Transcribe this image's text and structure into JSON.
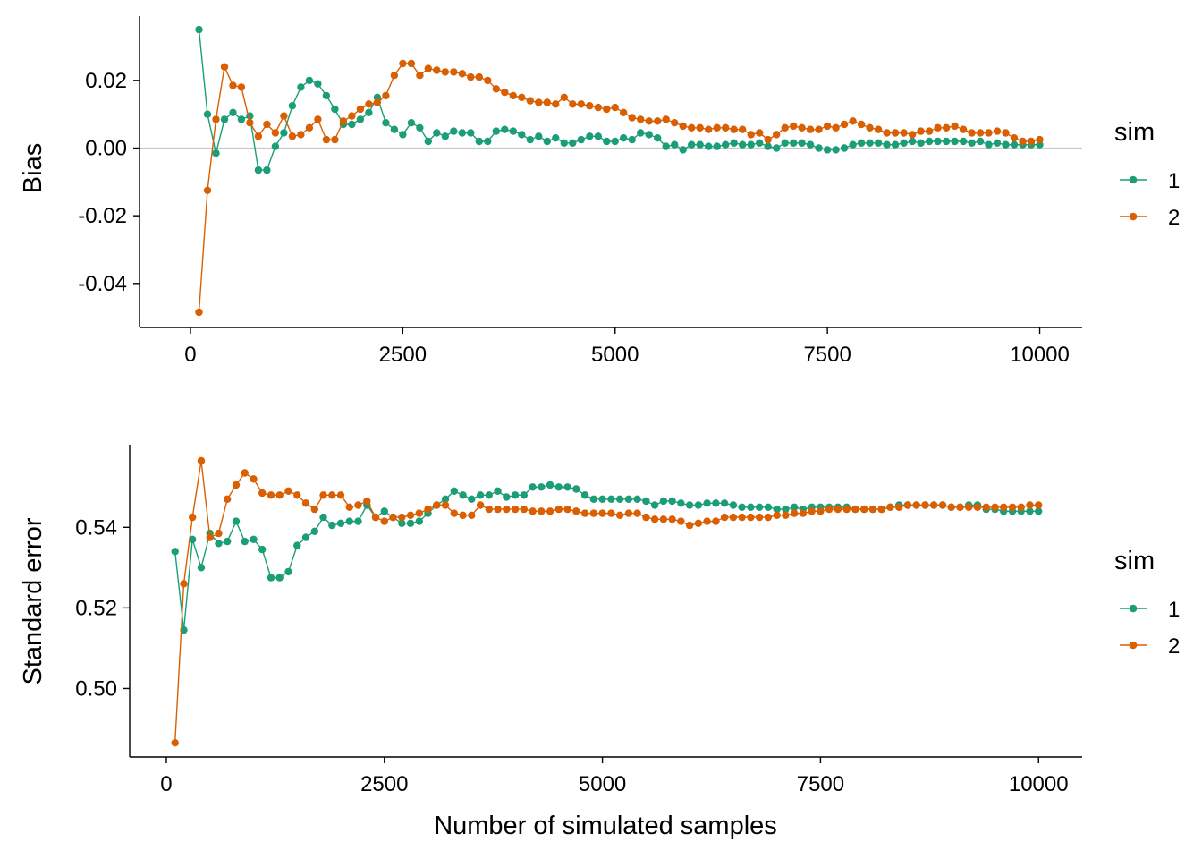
{
  "colors": {
    "series_1": "#1b9e77",
    "series_2": "#d95f02",
    "zero_line": "#c8c8c8",
    "axis": "#000000"
  },
  "chart_data": [
    {
      "type": "line",
      "title": "",
      "xlabel": "",
      "ylabel": "Bias",
      "xlim": [
        -600,
        10500
      ],
      "ylim": [
        -0.053,
        0.039
      ],
      "x_ticks": [
        0,
        2500,
        5000,
        7500,
        10000
      ],
      "x_tick_labels": [
        "0",
        "2500",
        "5000",
        "7500",
        "10000"
      ],
      "y_ticks": [
        -0.04,
        -0.02,
        0.0,
        0.02
      ],
      "y_tick_labels": [
        "-0.04",
        "-0.02",
        "0.00",
        "0.02"
      ],
      "reference_line_y": 0,
      "grid": false,
      "legend": {
        "title": "sim",
        "position": "right",
        "entries": [
          "1",
          "2"
        ]
      },
      "x": [
        100,
        200,
        300,
        400,
        500,
        600,
        700,
        800,
        900,
        1000,
        1100,
        1200,
        1300,
        1400,
        1500,
        1600,
        1700,
        1800,
        1900,
        2000,
        2100,
        2200,
        2300,
        2400,
        2500,
        2600,
        2700,
        2800,
        2900,
        3000,
        3100,
        3200,
        3300,
        3400,
        3500,
        3600,
        3700,
        3800,
        3900,
        4000,
        4100,
        4200,
        4300,
        4400,
        4500,
        4600,
        4700,
        4800,
        4900,
        5000,
        5100,
        5200,
        5300,
        5400,
        5500,
        5600,
        5700,
        5800,
        5900,
        6000,
        6100,
        6200,
        6300,
        6400,
        6500,
        6600,
        6700,
        6800,
        6900,
        7000,
        7100,
        7200,
        7300,
        7400,
        7500,
        7600,
        7700,
        7800,
        7900,
        8000,
        8100,
        8200,
        8300,
        8400,
        8500,
        8600,
        8700,
        8800,
        8900,
        9000,
        9100,
        9200,
        9300,
        9400,
        9500,
        9600,
        9700,
        9800,
        9900,
        10000
      ],
      "series": [
        {
          "name": "1",
          "values": [
            0.035,
            0.01,
            -0.0015,
            0.0085,
            0.0105,
            0.0085,
            0.0095,
            -0.0065,
            -0.0065,
            0.0005,
            0.0045,
            0.0125,
            0.018,
            0.02,
            0.019,
            0.0155,
            0.0115,
            0.007,
            0.007,
            0.0085,
            0.0105,
            0.015,
            0.0075,
            0.0055,
            0.004,
            0.0075,
            0.006,
            0.002,
            0.0045,
            0.0035,
            0.005,
            0.0045,
            0.0045,
            0.002,
            0.002,
            0.005,
            0.0055,
            0.005,
            0.004,
            0.0025,
            0.0035,
            0.002,
            0.003,
            0.0015,
            0.0015,
            0.0025,
            0.0035,
            0.0035,
            0.002,
            0.002,
            0.003,
            0.0025,
            0.0045,
            0.004,
            0.003,
            0.0005,
            0.001,
            -0.0005,
            0.001,
            0.001,
            0.0005,
            0.0005,
            0.001,
            0.0015,
            0.001,
            0.001,
            0.0015,
            0.0005,
            0.0,
            0.0015,
            0.0015,
            0.0015,
            0.001,
            0.0,
            -0.0005,
            -0.0005,
            0.0,
            0.001,
            0.0015,
            0.0015,
            0.0015,
            0.001,
            0.001,
            0.0015,
            0.002,
            0.0015,
            0.002,
            0.002,
            0.002,
            0.002,
            0.002,
            0.0015,
            0.002,
            0.001,
            0.0015,
            0.001,
            0.001,
            0.001,
            0.001,
            0.001
          ]
        },
        {
          "name": "2",
          "values": [
            -0.0485,
            -0.0125,
            0.0085,
            0.024,
            0.0185,
            0.018,
            0.0075,
            0.0035,
            0.007,
            0.0045,
            0.0095,
            0.0035,
            0.004,
            0.006,
            0.0085,
            0.0025,
            0.0025,
            0.008,
            0.0095,
            0.0115,
            0.013,
            0.0135,
            0.0155,
            0.0215,
            0.025,
            0.025,
            0.0215,
            0.0235,
            0.023,
            0.0225,
            0.0225,
            0.022,
            0.021,
            0.021,
            0.02,
            0.0175,
            0.0165,
            0.0155,
            0.015,
            0.014,
            0.0135,
            0.0135,
            0.013,
            0.015,
            0.013,
            0.013,
            0.0125,
            0.012,
            0.0115,
            0.012,
            0.0105,
            0.009,
            0.0085,
            0.008,
            0.008,
            0.0085,
            0.0075,
            0.0065,
            0.006,
            0.006,
            0.0055,
            0.006,
            0.006,
            0.0055,
            0.0055,
            0.004,
            0.0045,
            0.0025,
            0.004,
            0.006,
            0.0065,
            0.006,
            0.0055,
            0.0055,
            0.0065,
            0.006,
            0.007,
            0.008,
            0.007,
            0.006,
            0.0055,
            0.0045,
            0.0045,
            0.0045,
            0.004,
            0.005,
            0.005,
            0.006,
            0.006,
            0.0065,
            0.0055,
            0.0045,
            0.0045,
            0.0045,
            0.005,
            0.0045,
            0.003,
            0.002,
            0.002,
            0.0025
          ]
        }
      ]
    },
    {
      "type": "line",
      "title": "",
      "xlabel": "Number of simulated samples",
      "ylabel": "Standard error",
      "xlim": [
        -420,
        10500
      ],
      "ylim": [
        0.483,
        0.5605
      ],
      "x_ticks": [
        0,
        2500,
        5000,
        7500,
        10000
      ],
      "x_tick_labels": [
        "0",
        "2500",
        "5000",
        "7500",
        "10000"
      ],
      "y_ticks": [
        0.5,
        0.52,
        0.54
      ],
      "y_tick_labels": [
        "0.50",
        "0.52",
        "0.54"
      ],
      "grid": false,
      "legend": {
        "title": "sim",
        "position": "right",
        "entries": [
          "1",
          "2"
        ]
      },
      "x": [
        100,
        200,
        300,
        400,
        500,
        600,
        700,
        800,
        900,
        1000,
        1100,
        1200,
        1300,
        1400,
        1500,
        1600,
        1700,
        1800,
        1900,
        2000,
        2100,
        2200,
        2300,
        2400,
        2500,
        2600,
        2700,
        2800,
        2900,
        3000,
        3100,
        3200,
        3300,
        3400,
        3500,
        3600,
        3700,
        3800,
        3900,
        4000,
        4100,
        4200,
        4300,
        4400,
        4500,
        4600,
        4700,
        4800,
        4900,
        5000,
        5100,
        5200,
        5300,
        5400,
        5500,
        5600,
        5700,
        5800,
        5900,
        6000,
        6100,
        6200,
        6300,
        6400,
        6500,
        6600,
        6700,
        6800,
        6900,
        7000,
        7100,
        7200,
        7300,
        7400,
        7500,
        7600,
        7700,
        7800,
        7900,
        8000,
        8100,
        8200,
        8300,
        8400,
        8500,
        8600,
        8700,
        8800,
        8900,
        9000,
        9100,
        9200,
        9300,
        9400,
        9500,
        9600,
        9700,
        9800,
        9900,
        10000
      ],
      "series": [
        {
          "name": "1",
          "values": [
            0.534,
            0.5145,
            0.537,
            0.53,
            0.5385,
            0.536,
            0.5365,
            0.5415,
            0.5365,
            0.537,
            0.5345,
            0.5275,
            0.5275,
            0.529,
            0.5355,
            0.5375,
            0.539,
            0.5425,
            0.5405,
            0.541,
            0.5415,
            0.5415,
            0.5455,
            0.5425,
            0.544,
            0.5425,
            0.541,
            0.541,
            0.5415,
            0.5435,
            0.5455,
            0.547,
            0.549,
            0.548,
            0.547,
            0.548,
            0.548,
            0.549,
            0.5475,
            0.548,
            0.548,
            0.55,
            0.55,
            0.5505,
            0.55,
            0.55,
            0.5495,
            0.548,
            0.547,
            0.547,
            0.547,
            0.547,
            0.547,
            0.547,
            0.5465,
            0.5455,
            0.5465,
            0.5465,
            0.546,
            0.5455,
            0.5455,
            0.546,
            0.546,
            0.546,
            0.5455,
            0.545,
            0.545,
            0.545,
            0.545,
            0.5445,
            0.5445,
            0.545,
            0.5445,
            0.545,
            0.545,
            0.545,
            0.545,
            0.545,
            0.5445,
            0.5445,
            0.5445,
            0.5445,
            0.545,
            0.5455,
            0.5455,
            0.5455,
            0.5455,
            0.5455,
            0.5455,
            0.545,
            0.545,
            0.5455,
            0.5455,
            0.5445,
            0.5445,
            0.544,
            0.544,
            0.544,
            0.544,
            0.544
          ]
        },
        {
          "name": "2",
          "values": [
            0.4865,
            0.526,
            0.5425,
            0.5565,
            0.5375,
            0.5385,
            0.547,
            0.5505,
            0.5535,
            0.552,
            0.5485,
            0.548,
            0.548,
            0.549,
            0.548,
            0.546,
            0.5445,
            0.548,
            0.548,
            0.548,
            0.545,
            0.5455,
            0.5465,
            0.5425,
            0.5415,
            0.5425,
            0.5425,
            0.543,
            0.5435,
            0.5445,
            0.5455,
            0.5455,
            0.5435,
            0.543,
            0.543,
            0.5455,
            0.5445,
            0.5445,
            0.5445,
            0.5445,
            0.5445,
            0.544,
            0.544,
            0.544,
            0.5445,
            0.5445,
            0.544,
            0.5435,
            0.5435,
            0.5435,
            0.5435,
            0.543,
            0.5435,
            0.5435,
            0.5425,
            0.542,
            0.542,
            0.542,
            0.5415,
            0.5405,
            0.541,
            0.5415,
            0.5415,
            0.5425,
            0.5425,
            0.5425,
            0.5425,
            0.5425,
            0.5425,
            0.543,
            0.543,
            0.5435,
            0.5435,
            0.544,
            0.544,
            0.5445,
            0.5445,
            0.5445,
            0.5445,
            0.5445,
            0.5445,
            0.5445,
            0.545,
            0.545,
            0.5455,
            0.5455,
            0.5455,
            0.5455,
            0.5455,
            0.545,
            0.545,
            0.545,
            0.545,
            0.545,
            0.545,
            0.545,
            0.545,
            0.545,
            0.5455,
            0.5455
          ]
        }
      ]
    }
  ]
}
